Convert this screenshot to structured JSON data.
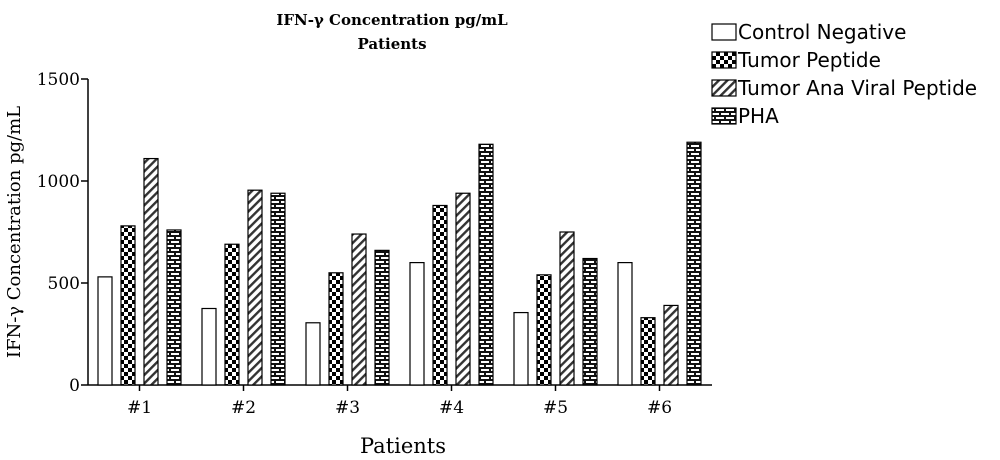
{
  "chart_data": {
    "type": "bar",
    "title": "IFN-γ Concentration pg/mL",
    "subtitle": "Patients",
    "xlabel": "Patients",
    "ylabel": "IFN-γ Concentration pg/mL",
    "categories": [
      "#1",
      "#2",
      "#3",
      "#4",
      "#5",
      "#6"
    ],
    "ylim": [
      0,
      1500
    ],
    "yticks": [
      0,
      500,
      1000,
      1500
    ],
    "grid": false,
    "legend_position": "top-right",
    "series": [
      {
        "name": "Control Negative",
        "pattern": "white",
        "values": [
          530,
          375,
          305,
          600,
          355,
          600
        ]
      },
      {
        "name": "Tumor Peptide",
        "pattern": "checker",
        "values": [
          780,
          690,
          550,
          880,
          540,
          330
        ]
      },
      {
        "name": "Tumor Ana Viral Peptide",
        "pattern": "diagonal",
        "values": [
          1110,
          955,
          740,
          940,
          750,
          390
        ]
      },
      {
        "name": "PHA",
        "pattern": "brick",
        "values": [
          760,
          940,
          660,
          1180,
          620,
          1190
        ]
      }
    ]
  }
}
